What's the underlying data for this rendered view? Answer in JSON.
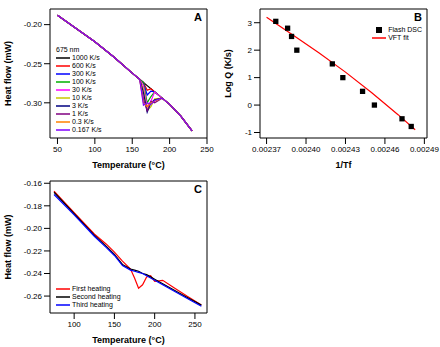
{
  "chart_data": [
    {
      "type": "line",
      "title": "A",
      "legend_title": "675 nm",
      "x_label": "Temperature (°C)",
      "y_label": "Heat flow (mW)",
      "xlim": [
        40,
        250
      ],
      "xticks": [
        50,
        100,
        150,
        200,
        250
      ],
      "ylim": [
        -0.345,
        -0.18
      ],
      "yticks": [
        {
          "value": -0.3,
          "label": "-0.30"
        },
        {
          "value": -0.25,
          "label": "-0.25"
        },
        {
          "value": -0.2,
          "label": "-0.20"
        }
      ],
      "legend": "lower left",
      "x": [
        50,
        75,
        100,
        125,
        150,
        160,
        165,
        170,
        175,
        180,
        190,
        200,
        215,
        230
      ],
      "series": [
        {
          "name": "1000 K/s",
          "color": "#000000",
          "values": [
            -0.188,
            -0.205,
            -0.222,
            -0.241,
            -0.262,
            -0.27,
            -0.274,
            -0.278,
            -0.282,
            -0.286,
            -0.294,
            -0.302,
            -0.317,
            -0.336
          ]
        },
        {
          "name": "600 K/s",
          "color": "#ff0000",
          "values": [
            -0.188,
            -0.205,
            -0.222,
            -0.241,
            -0.262,
            -0.27,
            -0.274,
            -0.284,
            -0.282,
            -0.286,
            -0.294,
            -0.302,
            -0.317,
            -0.336
          ]
        },
        {
          "name": "300 K/s",
          "color": "#0000ff",
          "values": [
            -0.188,
            -0.205,
            -0.222,
            -0.241,
            -0.262,
            -0.27,
            -0.274,
            -0.29,
            -0.285,
            -0.286,
            -0.294,
            -0.302,
            -0.317,
            -0.336
          ]
        },
        {
          "name": "100 K/s",
          "color": "#00b000",
          "values": [
            -0.188,
            -0.205,
            -0.222,
            -0.241,
            -0.262,
            -0.27,
            -0.274,
            -0.3,
            -0.292,
            -0.286,
            -0.294,
            -0.302,
            -0.317,
            -0.336
          ]
        },
        {
          "name": "30 K/s",
          "color": "#ff00ff",
          "values": [
            -0.188,
            -0.205,
            -0.222,
            -0.241,
            -0.262,
            -0.27,
            -0.278,
            -0.305,
            -0.298,
            -0.286,
            -0.294,
            -0.302,
            -0.317,
            -0.336
          ]
        },
        {
          "name": "10 K/s",
          "color": "#c8c800",
          "values": [
            -0.188,
            -0.205,
            -0.222,
            -0.241,
            -0.262,
            -0.27,
            -0.283,
            -0.31,
            -0.305,
            -0.295,
            -0.294,
            -0.302,
            -0.317,
            -0.336
          ]
        },
        {
          "name": "3 K/s",
          "color": "#000080",
          "values": [
            -0.188,
            -0.205,
            -0.222,
            -0.241,
            -0.262,
            -0.27,
            -0.287,
            -0.312,
            -0.3,
            -0.296,
            -0.294,
            -0.302,
            -0.317,
            -0.336
          ]
        },
        {
          "name": "1 K/s",
          "color": "#800080",
          "values": [
            -0.188,
            -0.205,
            -0.222,
            -0.241,
            -0.262,
            -0.27,
            -0.295,
            -0.31,
            -0.298,
            -0.3,
            -0.294,
            -0.302,
            -0.317,
            -0.336
          ]
        },
        {
          "name": "0.3 K/s",
          "color": "#ff8000",
          "values": [
            -0.188,
            -0.205,
            -0.222,
            -0.241,
            -0.262,
            -0.27,
            -0.3,
            -0.305,
            -0.3,
            -0.298,
            -0.294,
            -0.302,
            -0.317,
            -0.336
          ]
        },
        {
          "name": "0.167 K/s",
          "color": "#8000ff",
          "values": [
            -0.188,
            -0.205,
            -0.222,
            -0.241,
            -0.262,
            -0.27,
            -0.303,
            -0.3,
            -0.302,
            -0.297,
            -0.294,
            -0.302,
            -0.317,
            -0.336
          ]
        }
      ]
    },
    {
      "type": "scatter",
      "title": "B",
      "x_label": "1/Tf",
      "y_label": "Log Q (K/s)",
      "xlim": [
        0.002365,
        0.002492
      ],
      "xticks": [
        0.00237,
        {
          "value": 0.0024,
          "label": "0.00240"
        },
        0.00243,
        0.00246,
        0.00249
      ],
      "ylim": [
        -1.2,
        3.5
      ],
      "yticks": [
        -1,
        0,
        1,
        2,
        3
      ],
      "legend": "upper right",
      "series": [
        {
          "name": "Flash DSC",
          "type": "scatter",
          "marker": "square",
          "color": "#000000",
          "x": [
            0.002377,
            0.002386,
            0.002389,
            0.002393,
            0.00242,
            0.002428,
            0.002443,
            0.002452,
            0.002473,
            0.00248
          ],
          "values": [
            3.05,
            2.8,
            2.5,
            2.0,
            1.5,
            1.0,
            0.5,
            0.0,
            -0.5,
            -0.78
          ]
        },
        {
          "name": "VFT fit",
          "type": "line",
          "color": "#ff0000",
          "x": [
            0.00237,
            0.00239,
            0.00241,
            0.00243,
            0.00245,
            0.00247,
            0.002483
          ],
          "values": [
            3.2,
            2.55,
            1.9,
            1.2,
            0.45,
            -0.35,
            -0.9
          ]
        }
      ]
    },
    {
      "type": "line",
      "title": "C",
      "x_label": "Temperature (°C)",
      "y_label": "Heat flow (mW)",
      "xlim": [
        70,
        265
      ],
      "xticks": [
        100,
        150,
        200,
        250
      ],
      "ylim": [
        -0.275,
        -0.158
      ],
      "yticks": [
        {
          "value": -0.26,
          "label": "-0.26"
        },
        {
          "value": -0.24,
          "label": "-0.24"
        },
        {
          "value": -0.22,
          "label": "-0.22"
        },
        {
          "value": -0.2,
          "label": "-0.20"
        },
        {
          "value": -0.18,
          "label": "-0.18"
        },
        -0.16
      ],
      "legend": "lower left",
      "x": [
        75,
        100,
        125,
        140,
        150,
        160,
        170,
        175,
        180,
        185,
        190,
        195,
        200,
        210,
        225,
        240,
        258
      ],
      "series": [
        {
          "name": "First heating",
          "color": "#ff0000",
          "values": [
            -0.167,
            -0.186,
            -0.205,
            -0.214,
            -0.221,
            -0.229,
            -0.236,
            -0.244,
            -0.253,
            -0.25,
            -0.243,
            -0.242,
            -0.247,
            -0.246,
            -0.253,
            -0.26,
            -0.268
          ]
        },
        {
          "name": "Second heating",
          "color": "#000000",
          "values": [
            -0.168,
            -0.187,
            -0.206,
            -0.216,
            -0.223,
            -0.232,
            -0.236,
            -0.237,
            -0.238,
            -0.24,
            -0.241,
            -0.243,
            -0.245,
            -0.249,
            -0.255,
            -0.261,
            -0.268
          ]
        },
        {
          "name": "Third heating",
          "color": "#0000ff",
          "values": [
            -0.17,
            -0.188,
            -0.207,
            -0.217,
            -0.224,
            -0.233,
            -0.237,
            -0.238,
            -0.239,
            -0.24,
            -0.242,
            -0.244,
            -0.246,
            -0.25,
            -0.256,
            -0.262,
            -0.269
          ]
        }
      ]
    }
  ]
}
